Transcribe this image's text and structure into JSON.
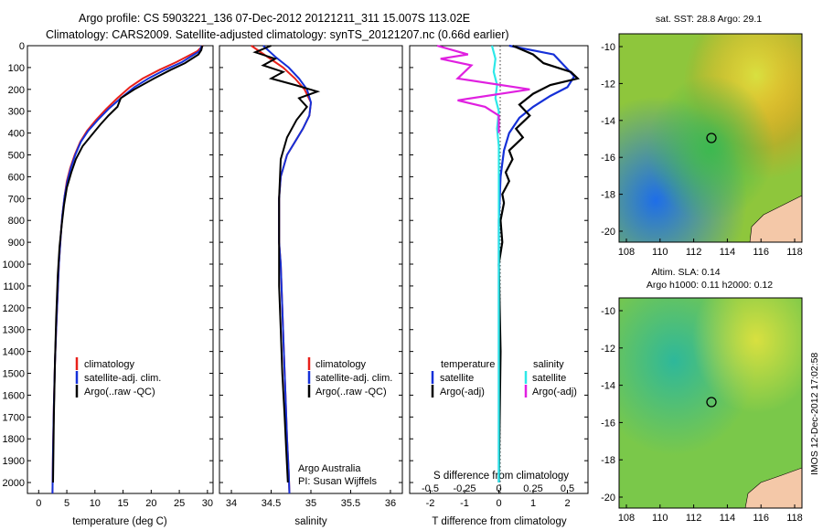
{
  "title_line1": "Argo profile: CS 5903221_136 07-Dec-2012 20121211_311 15.007S 113.02E",
  "title_line2": "Climatology: CARS2009. Satellite-adjusted climatology: synTS_20121207.nc (0.66d earlier)",
  "side_stamp": "IMOS 12-Dec-2012 17:02:58",
  "depth_ticks": [
    "0",
    "100",
    "200",
    "300",
    "400",
    "500",
    "600",
    "700",
    "800",
    "900",
    "1000",
    "1100",
    "1200",
    "1300",
    "1400",
    "1500",
    "1600",
    "1700",
    "1800",
    "1900",
    "2000"
  ],
  "colors": {
    "climatology": "#e8201a",
    "satellite": "#1530d8",
    "argo": "#000000",
    "sat_salinity": "#2ee8e8",
    "argo_salinity": "#e020e0"
  },
  "temp_panel": {
    "xlabel": "temperature (deg C)",
    "xticks": [
      "0",
      "5",
      "10",
      "15",
      "20",
      "25",
      "30"
    ],
    "legend": [
      "climatology",
      "satellite-adj. clim.",
      "Argo(..raw -QC)"
    ]
  },
  "sal_panel": {
    "xlabel": "salinity",
    "xticks": [
      "34",
      "34.5",
      "35",
      "35.5",
      "36"
    ],
    "legend": [
      "climatology",
      "satellite-adj. clim.",
      "Argo(..raw -QC)"
    ],
    "note1": "Argo Australia",
    "note2": "PI: Susan Wijffels"
  },
  "diff_panel": {
    "xlabel": "T difference from climatology",
    "xticks": [
      "-2",
      "-1",
      "0",
      "1",
      "2"
    ],
    "top_label": "S difference from climatology",
    "top_ticks": [
      "-0.5",
      "-0.25",
      "0",
      "0.25",
      "0.5"
    ],
    "leg_temp_title": "temperature",
    "leg_sal_title": "salinity",
    "leg_temp": [
      "satellite",
      "Argo(-adj)"
    ],
    "leg_sal": [
      "satellite",
      "Argo(-adj)"
    ]
  },
  "map_sst": {
    "title": "sat. SST: 28.8 Argo: 29.1",
    "yticks": [
      "-10",
      "-12",
      "-14",
      "-16",
      "-18",
      "-20"
    ],
    "xticks": [
      "108",
      "110",
      "112",
      "114",
      "116",
      "118"
    ]
  },
  "map_sla": {
    "title1": "Altim. SLA: 0.14",
    "title2": "Argo h1000: 0.11 h2000: 0.12",
    "yticks": [
      "-10",
      "-12",
      "-14",
      "-16",
      "-18",
      "-20"
    ],
    "xticks": [
      "108",
      "110",
      "112",
      "114",
      "116",
      "118"
    ]
  },
  "chart_data": [
    {
      "type": "line",
      "xlabel": "temperature (deg C)",
      "ylabel": "",
      "xlim": [
        -2,
        31
      ],
      "ylim": [
        2050,
        0
      ],
      "series": [
        {
          "name": "climatology",
          "x": [
            29.2,
            28.2,
            24.5,
            21.5,
            18.5,
            16.2,
            14.0,
            12.0,
            10.2,
            8.6,
            7.4,
            6.4,
            5.6,
            5.0,
            4.6,
            4.2,
            3.9,
            3.6,
            3.35,
            3.1,
            2.9,
            2.7,
            2.55,
            2.45
          ],
          "y": [
            0,
            25,
            75,
            110,
            150,
            190,
            240,
            290,
            340,
            390,
            440,
            500,
            560,
            620,
            690,
            780,
            880,
            1000,
            1150,
            1300,
            1450,
            1650,
            1850,
            2050
          ]
        },
        {
          "name": "satellite-adj. clim.",
          "x": [
            29.0,
            28.6,
            25.5,
            22.5,
            19.5,
            17.0,
            14.6,
            12.4,
            10.5,
            8.8,
            7.5,
            6.5,
            5.7,
            5.1,
            4.6,
            4.2,
            3.9,
            3.6,
            3.35,
            3.1,
            2.9,
            2.7,
            2.55,
            2.45
          ],
          "y": [
            0,
            25,
            75,
            110,
            150,
            190,
            240,
            290,
            340,
            390,
            440,
            500,
            560,
            620,
            690,
            780,
            880,
            1000,
            1150,
            1300,
            1450,
            1650,
            1850,
            2050
          ]
        },
        {
          "name": "Argo(..raw -QC)",
          "x": [
            29.1,
            28.9,
            28.4,
            26.0,
            23.5,
            20.5,
            17.0,
            14.6,
            14.0,
            12.4,
            11.0,
            9.4,
            7.8,
            6.6,
            5.8,
            5.0,
            4.5,
            4.1,
            3.7,
            3.4,
            3.1,
            2.9,
            2.7,
            2.55
          ],
          "y": [
            0,
            20,
            40,
            80,
            110,
            150,
            200,
            240,
            280,
            320,
            360,
            410,
            460,
            520,
            580,
            650,
            730,
            820,
            920,
            1050,
            1250,
            1450,
            1700,
            2000
          ]
        }
      ]
    },
    {
      "type": "line",
      "xlabel": "salinity",
      "xlim": [
        33.85,
        36.15
      ],
      "ylim": [
        2050,
        0
      ],
      "series": [
        {
          "name": "climatology",
          "x": [
            34.25,
            34.45,
            34.65,
            34.8,
            34.92,
            35.0,
            34.98,
            34.9,
            34.8,
            34.7,
            34.62,
            34.6,
            34.6,
            34.6,
            34.62,
            34.64,
            34.66,
            34.68,
            34.7,
            34.72,
            34.73
          ],
          "y": [
            0,
            50,
            100,
            150,
            200,
            260,
            320,
            380,
            440,
            500,
            600,
            700,
            800,
            900,
            1000,
            1200,
            1400,
            1600,
            1800,
            1950,
            2050
          ]
        },
        {
          "name": "satellite-adj. clim.",
          "x": [
            34.4,
            34.55,
            34.72,
            34.85,
            34.95,
            35.0,
            34.98,
            34.9,
            34.8,
            34.7,
            34.62,
            34.6,
            34.6,
            34.6,
            34.62,
            34.64,
            34.66,
            34.68,
            34.7,
            34.72,
            34.73
          ],
          "y": [
            0,
            50,
            100,
            150,
            200,
            260,
            320,
            380,
            440,
            500,
            600,
            700,
            800,
            900,
            1000,
            1200,
            1400,
            1600,
            1800,
            1950,
            2050
          ]
        },
        {
          "name": "Argo(..raw -QC)",
          "x": [
            34.5,
            34.3,
            34.55,
            34.4,
            34.65,
            34.5,
            34.8,
            35.08,
            34.85,
            34.95,
            34.82,
            34.7,
            34.62,
            34.6,
            34.6,
            34.6,
            34.62,
            34.64,
            34.67,
            34.69,
            34.71
          ],
          "y": [
            0,
            30,
            60,
            90,
            120,
            150,
            180,
            210,
            240,
            280,
            340,
            420,
            520,
            700,
            900,
            1100,
            1300,
            1500,
            1700,
            1850,
            2000
          ]
        }
      ]
    },
    {
      "type": "line",
      "xlabel": "T difference from climatology",
      "xlim": [
        -2.6,
        2.6
      ],
      "ylim": [
        2050,
        0
      ],
      "series": [
        {
          "name": "satellite",
          "x": [
            0.3,
            1.6,
            2.2,
            2.0,
            1.5,
            1.0,
            0.6,
            0.3,
            0.15,
            0.05,
            0.0,
            0.0,
            0.0
          ],
          "y": [
            0,
            40,
            140,
            190,
            230,
            280,
            330,
            400,
            480,
            600,
            800,
            1200,
            2000
          ]
        },
        {
          "name": "Argo(-adj)",
          "x": [
            0.4,
            1.0,
            1.3,
            1.7,
            2.1,
            2.3,
            1.5,
            1.0,
            0.6,
            0.9,
            0.5,
            0.7,
            0.3,
            0.4,
            0.2,
            0.3,
            0.1,
            0.15,
            0.05,
            0.1,
            0.0,
            0.05,
            0.0
          ],
          "y": [
            0,
            40,
            80,
            100,
            120,
            150,
            180,
            220,
            270,
            320,
            380,
            420,
            480,
            520,
            580,
            620,
            680,
            720,
            800,
            900,
            1000,
            1400,
            2000
          ]
        },
        {
          "name": "salinity satellite",
          "x": [
            -0.2,
            -0.1,
            -0.15,
            -0.05,
            -0.1,
            0.0,
            -0.05,
            0.0,
            0.0,
            0.0,
            0.0
          ],
          "y": [
            0,
            60,
            120,
            180,
            240,
            300,
            380,
            460,
            600,
            1000,
            2000
          ]
        },
        {
          "name": "salinity Argo(-adj)",
          "x": [
            -1.8,
            -0.9,
            -1.7,
            -0.8,
            -1.2,
            0.9,
            -1.2,
            -0.4,
            0.0,
            0.0
          ],
          "y": [
            0,
            40,
            60,
            90,
            150,
            200,
            250,
            280,
            320,
            400
          ]
        }
      ]
    }
  ]
}
